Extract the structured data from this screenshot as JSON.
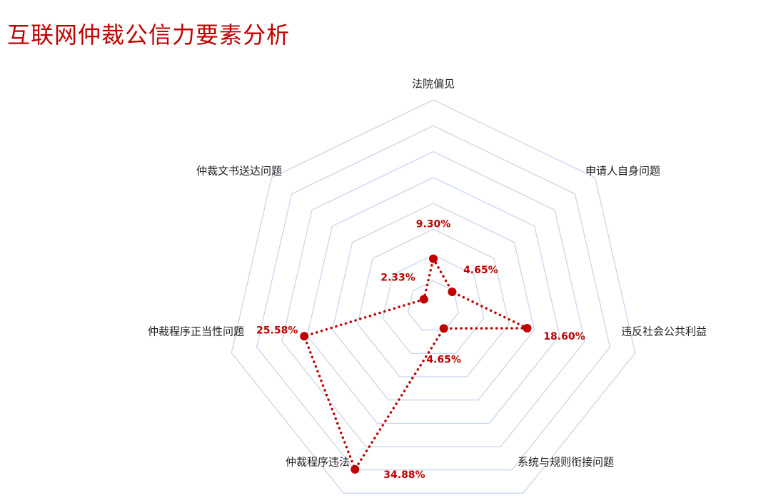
{
  "page": {
    "title": "互联网仲裁公信力要素分析"
  },
  "colors": {
    "title": "#c00000",
    "series": "#c00000",
    "grid": "#c5d2ec"
  },
  "chart_data": {
    "type": "radar",
    "title": "互联网仲裁公信力要素分析",
    "axes": [
      "法院偏见",
      "申请人自身问题",
      "违反社会公共利益",
      "系统与规则衔接问题",
      "仲裁程序违法",
      "仲裁程序正当性问题",
      "仲裁文书送达问题"
    ],
    "rlim": [
      0,
      40
    ],
    "grid_rings": 8,
    "grid": true,
    "legend": "none",
    "series": [
      {
        "values": [
          9.3,
          4.65,
          18.6,
          4.65,
          34.88,
          25.58,
          2.33
        ],
        "labels": [
          "9.30%",
          "4.65%",
          "18.60%",
          "4.65%",
          "34.88%",
          "25.58%",
          "2.33%"
        ],
        "line_style": "dotted"
      }
    ]
  }
}
